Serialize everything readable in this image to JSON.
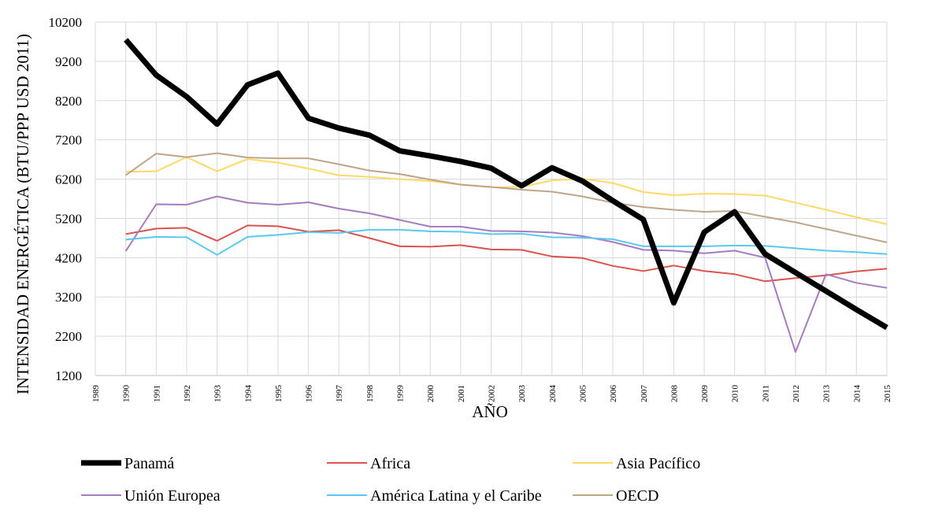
{
  "chart_data": {
    "type": "line",
    "xlabel": "AÑO",
    "ylabel": "INTENSIDAD ENERGÉTICA (BTU/PPP USD 2011)",
    "categories": [
      "1989",
      "1990",
      "1991",
      "1992",
      "1993",
      "1994",
      "1995",
      "1996",
      "1997",
      "1998",
      "1999",
      "2000",
      "2001",
      "2002",
      "2003",
      "2004",
      "2005",
      "2006",
      "2007",
      "2008",
      "2009",
      "2010",
      "2011",
      "2012",
      "2013",
      "2014",
      "2015"
    ],
    "ylim": [
      1200,
      10200
    ],
    "yticks": [
      1200,
      2200,
      3200,
      4200,
      5200,
      6200,
      7200,
      8200,
      9200,
      10200
    ],
    "grid": true,
    "legend_position": "bottom",
    "series": [
      {
        "name": "Panamá",
        "color": "#000000",
        "values": [
          null,
          9750,
          8850,
          8300,
          7600,
          8600,
          8900,
          7750,
          7500,
          7320,
          6920,
          6790,
          6650,
          6480,
          6030,
          6490,
          6150,
          5650,
          5170,
          3050,
          4850,
          5370,
          4290,
          3820,
          3350,
          2880,
          2420
        ]
      },
      {
        "name": "Africa",
        "color": "#d9534f",
        "values": [
          null,
          4800,
          4940,
          4960,
          4630,
          5020,
          5000,
          4860,
          4900,
          4700,
          4490,
          4480,
          4520,
          4410,
          4400,
          4230,
          4190,
          3990,
          3860,
          4000,
          3860,
          3780,
          3600,
          3680,
          3750,
          3850,
          3920
        ]
      },
      {
        "name": "Asia Pacífico",
        "color": "#ffd966",
        "values": [
          null,
          6390,
          6400,
          6760,
          6400,
          6710,
          6620,
          6470,
          6300,
          6260,
          6200,
          6150,
          6060,
          5990,
          6000,
          6170,
          6210,
          6100,
          5870,
          5790,
          5830,
          5820,
          5780,
          5600,
          5420,
          5230,
          5050
        ]
      },
      {
        "name": "Unión Europea",
        "color": "#a57bc2",
        "values": [
          null,
          4370,
          5560,
          5550,
          5760,
          5600,
          5550,
          5610,
          5450,
          5330,
          5160,
          4990,
          4990,
          4880,
          4870,
          4840,
          4750,
          4600,
          4400,
          4380,
          4310,
          4380,
          4200,
          1800,
          3780,
          3560,
          3430
        ]
      },
      {
        "name": "América Latina y el Caribe",
        "color": "#5bc8f0",
        "values": [
          null,
          4660,
          4730,
          4720,
          4270,
          4730,
          4780,
          4850,
          4830,
          4910,
          4910,
          4870,
          4860,
          4800,
          4810,
          4720,
          4710,
          4670,
          4490,
          4490,
          4490,
          4510,
          4500,
          4440,
          4380,
          4340,
          4290
        ]
      },
      {
        "name": "OECD",
        "color": "#bfa58a",
        "values": [
          null,
          6300,
          6850,
          6760,
          6860,
          6750,
          6730,
          6730,
          6580,
          6420,
          6330,
          6190,
          6060,
          6000,
          5930,
          5880,
          5760,
          5600,
          5490,
          5420,
          5370,
          5390,
          5240,
          5100,
          4930,
          4760,
          4590
        ]
      }
    ]
  }
}
